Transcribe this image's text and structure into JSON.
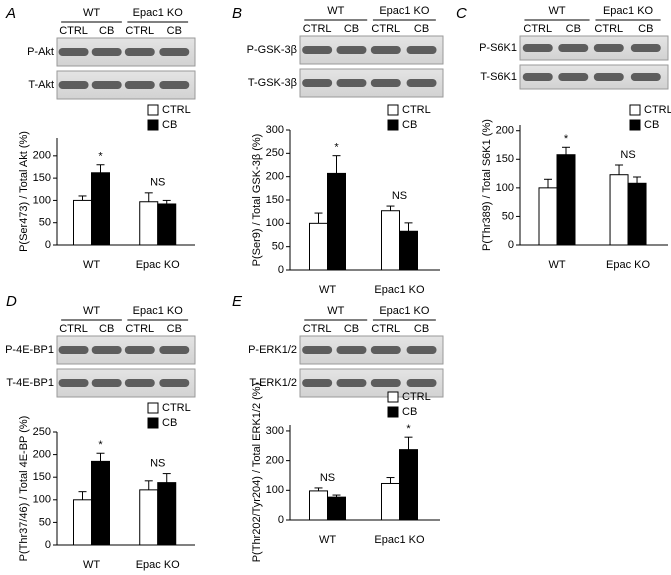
{
  "chart_data": [
    {
      "panel": "A",
      "type": "bar",
      "blot": {
        "groups": [
          "WT",
          "Epac1 KO"
        ],
        "lanes": [
          "CTRL",
          "CB",
          "CTRL",
          "CB"
        ],
        "rows": [
          "P-Akt",
          "T-Akt"
        ]
      },
      "ylabel": "P(Ser473) / Total Akt (%)",
      "categories": [
        "WT",
        "Epac KO"
      ],
      "series": [
        {
          "name": "CTRL",
          "color": "#ffffff",
          "values": [
            100,
            97
          ],
          "errors": [
            10,
            20
          ]
        },
        {
          "name": "CB",
          "color": "#000000",
          "values": [
            162,
            92
          ],
          "errors": [
            18,
            8
          ]
        }
      ],
      "ylim": [
        0,
        240
      ],
      "yticks": [
        0,
        50,
        100,
        150,
        200
      ],
      "annotations": [
        {
          "text": "*",
          "category": "WT",
          "series": "CB"
        },
        {
          "text": "NS",
          "category": "Epac KO"
        }
      ]
    },
    {
      "panel": "B",
      "type": "bar",
      "blot": {
        "groups": [
          "WT",
          "Epac1 KO"
        ],
        "lanes": [
          "CTRL",
          "CB",
          "CTRL",
          "CB"
        ],
        "rows": [
          "P-GSK-3β",
          "T-GSK-3β"
        ]
      },
      "ylabel": "P(Ser9) / Total GSK-3β (%)",
      "categories": [
        "WT",
        "Epac1 KO"
      ],
      "series": [
        {
          "name": "CTRL",
          "color": "#ffffff",
          "values": [
            100,
            127
          ],
          "errors": [
            22,
            10
          ]
        },
        {
          "name": "CB",
          "color": "#000000",
          "values": [
            207,
            83
          ],
          "errors": [
            38,
            18
          ]
        }
      ],
      "ylim": [
        0,
        300
      ],
      "yticks": [
        0,
        50,
        100,
        150,
        200,
        250,
        300
      ],
      "annotations": [
        {
          "text": "*",
          "category": "WT",
          "series": "CB"
        },
        {
          "text": "NS",
          "category": "Epac1 KO"
        }
      ]
    },
    {
      "panel": "C",
      "type": "bar",
      "blot": {
        "groups": [
          "WT",
          "Epac1 KO"
        ],
        "lanes": [
          "CTRL",
          "CB",
          "CTRL",
          "CB"
        ],
        "rows": [
          "P-S6K1",
          "T-S6K1"
        ]
      },
      "ylabel": "P(Thr389) / Total S6K1 (%)",
      "categories": [
        "WT",
        "Epac KO"
      ],
      "series": [
        {
          "name": "CTRL",
          "color": "#ffffff",
          "values": [
            100,
            123
          ],
          "errors": [
            15,
            17
          ]
        },
        {
          "name": "CB",
          "color": "#000000",
          "values": [
            158,
            108
          ],
          "errors": [
            13,
            11
          ]
        }
      ],
      "ylim": [
        0,
        210
      ],
      "yticks": [
        0,
        50,
        100,
        150,
        200
      ],
      "annotations": [
        {
          "text": "*",
          "category": "WT",
          "series": "CB"
        },
        {
          "text": "NS",
          "category": "Epac KO"
        }
      ]
    },
    {
      "panel": "D",
      "type": "bar",
      "blot": {
        "groups": [
          "WT",
          "Epac1 KO"
        ],
        "lanes": [
          "CTRL",
          "CB",
          "CTRL",
          "CB"
        ],
        "rows": [
          "P-4E-BP1",
          "T-4E-BP1"
        ]
      },
      "ylabel": "P(Thr37/46) / Total 4E-BP (%)",
      "categories": [
        "WT",
        "Epac KO"
      ],
      "series": [
        {
          "name": "CTRL",
          "color": "#ffffff",
          "values": [
            100,
            122
          ],
          "errors": [
            18,
            20
          ]
        },
        {
          "name": "CB",
          "color": "#000000",
          "values": [
            185,
            138
          ],
          "errors": [
            18,
            20
          ]
        }
      ],
      "ylim": [
        0,
        250
      ],
      "yticks": [
        0,
        50,
        100,
        150,
        200,
        250
      ],
      "annotations": [
        {
          "text": "*",
          "category": "WT",
          "series": "CB"
        },
        {
          "text": "NS",
          "category": "Epac KO"
        }
      ]
    },
    {
      "panel": "E",
      "type": "bar",
      "blot": {
        "groups": [
          "WT",
          "Epac1 KO"
        ],
        "lanes": [
          "CTRL",
          "CB",
          "CTRL",
          "CB"
        ],
        "rows": [
          "P-ERK1/2",
          "T-ERK1/2"
        ]
      },
      "ylabel": "P(Thr202/Tyr204) / Total ERK1/2 (%)",
      "categories": [
        "WT",
        "Epac1 KO"
      ],
      "series": [
        {
          "name": "CTRL",
          "color": "#ffffff",
          "values": [
            98,
            123
          ],
          "errors": [
            10,
            20
          ]
        },
        {
          "name": "CB",
          "color": "#000000",
          "values": [
            77,
            237
          ],
          "errors": [
            7,
            42
          ]
        }
      ],
      "ylim": [
        0,
        320
      ],
      "yticks": [
        0,
        100,
        200,
        300
      ],
      "annotations": [
        {
          "text": "NS",
          "category": "WT"
        },
        {
          "text": "*",
          "category": "Epac1 KO",
          "series": "CB"
        }
      ]
    }
  ]
}
